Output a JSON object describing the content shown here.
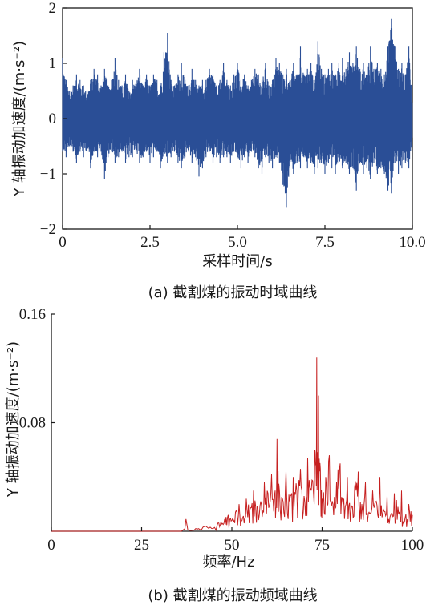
{
  "chart_data": [
    {
      "type": "line",
      "caption": "(a) 截割煤的振动时域曲线",
      "xlabel": "采样时间/s",
      "ylabel": "Y 轴振动加速度/(m·s⁻²)",
      "xlim": [
        0,
        10.0
      ],
      "ylim": [
        -2,
        2
      ],
      "x_ticks": [
        "0",
        "2.5",
        "5.0",
        "7.5",
        "10.0"
      ],
      "x_tick_values": [
        0,
        2.5,
        5.0,
        7.5,
        10.0
      ],
      "y_ticks": [
        "2",
        "1",
        "0",
        "−1",
        "−2"
      ],
      "y_tick_values": [
        2,
        1,
        0,
        -1,
        -2
      ],
      "color": "#2a4e96",
      "series": [
        {
          "x": [
            0.0,
            0.1,
            0.2,
            0.3,
            0.4,
            0.5,
            0.6,
            0.7,
            0.8,
            0.9,
            1.0,
            1.1,
            1.2,
            1.3,
            1.4,
            1.5,
            1.6,
            1.7,
            1.8,
            1.9,
            2.0,
            2.1,
            2.2,
            2.3,
            2.4,
            2.5,
            2.6,
            2.7,
            2.8,
            2.9,
            3.0,
            3.1,
            3.2,
            3.3,
            3.4,
            3.5,
            3.6,
            3.7,
            3.8,
            3.9,
            4.0,
            4.1,
            4.2,
            4.3,
            4.4,
            4.5,
            4.6,
            4.7,
            4.8,
            4.9,
            5.0,
            5.1,
            5.2,
            5.3,
            5.4,
            5.5,
            5.6,
            5.7,
            5.8,
            5.9,
            6.0,
            6.1,
            6.2,
            6.3,
            6.4,
            6.5,
            6.6,
            6.7,
            6.8,
            6.9,
            7.0,
            7.1,
            7.2,
            7.3,
            7.4,
            7.5,
            7.6,
            7.7,
            7.8,
            7.9,
            8.0,
            8.1,
            8.2,
            8.3,
            8.4,
            8.5,
            8.6,
            8.7,
            8.8,
            8.9,
            9.0,
            9.1,
            9.2,
            9.3,
            9.4,
            9.5,
            9.6,
            9.7,
            9.8,
            9.9,
            10.0
          ],
          "max": [
            1.1,
            0.7,
            0.5,
            0.6,
            0.8,
            0.7,
            0.6,
            0.5,
            0.7,
            0.9,
            0.8,
            0.6,
            0.9,
            0.6,
            0.7,
            1.1,
            0.7,
            0.6,
            0.8,
            0.5,
            0.7,
            0.7,
            0.9,
            0.6,
            0.8,
            0.6,
            0.8,
            0.7,
            0.6,
            1.2,
            1.55,
            0.7,
            0.6,
            0.8,
            1.0,
            0.7,
            0.6,
            0.9,
            0.7,
            0.6,
            0.7,
            0.7,
            0.9,
            0.8,
            0.6,
            0.7,
            1.0,
            0.7,
            0.6,
            0.8,
            1.0,
            0.7,
            0.8,
            0.6,
            0.7,
            0.9,
            0.8,
            0.7,
            1.0,
            0.6,
            0.7,
            1.1,
            1.0,
            0.8,
            0.9,
            0.7,
            1.0,
            0.8,
            1.3,
            0.8,
            0.9,
            1.0,
            0.7,
            1.4,
            0.9,
            0.8,
            0.9,
            1.0,
            0.8,
            1.0,
            1.1,
            0.9,
            1.2,
            1.0,
            1.3,
            0.9,
            1.0,
            0.8,
            1.3,
            0.9,
            1.0,
            0.9,
            0.8,
            1.3,
            1.8,
            1.3,
            0.9,
            1.0,
            0.8,
            1.3,
            0.3
          ],
          "min": [
            -0.6,
            -0.7,
            -0.5,
            -0.6,
            -0.8,
            -0.6,
            -0.7,
            -0.6,
            -0.9,
            -0.6,
            -0.7,
            -0.6,
            -1.1,
            -0.7,
            -0.6,
            -0.8,
            -0.7,
            -0.6,
            -0.8,
            -0.7,
            -0.7,
            -0.6,
            -0.8,
            -0.7,
            -0.6,
            -0.8,
            -0.7,
            -0.6,
            -0.9,
            -0.7,
            -0.8,
            -0.7,
            -0.6,
            -0.8,
            -0.9,
            -0.7,
            -0.6,
            -0.8,
            -0.7,
            -1.05,
            -0.9,
            -0.7,
            -0.6,
            -0.8,
            -0.7,
            -0.8,
            -0.7,
            -0.7,
            -0.8,
            -0.6,
            -0.7,
            -0.9,
            -0.7,
            -0.8,
            -0.6,
            -0.7,
            -0.9,
            -1.0,
            -0.7,
            -0.8,
            -0.9,
            -0.7,
            -0.8,
            -1.2,
            -1.6,
            -0.9,
            -1.0,
            -0.8,
            -0.9,
            -0.7,
            -0.9,
            -0.8,
            -1.0,
            -0.9,
            -0.8,
            -1.0,
            -0.8,
            -0.9,
            -1.0,
            -0.8,
            -0.9,
            -0.8,
            -1.0,
            -0.9,
            -1.3,
            -0.8,
            -1.0,
            -0.9,
            -1.1,
            -0.8,
            -1.0,
            -0.9,
            -1.0,
            -1.3,
            -1.35,
            -0.8,
            -1.0,
            -0.9,
            -0.8,
            -0.9,
            -0.4
          ]
        }
      ]
    },
    {
      "type": "line",
      "caption": "(b) 截割煤的振动频域曲线",
      "xlabel": "频率/Hz",
      "ylabel": "Y 轴振动加速度/(m·s⁻²)",
      "xlim": [
        0,
        100
      ],
      "ylim": [
        0,
        0.16
      ],
      "x_ticks": [
        "0",
        "25",
        "50",
        "75",
        "100"
      ],
      "x_tick_values": [
        0,
        25,
        50,
        75,
        100
      ],
      "y_ticks": [
        "0.16",
        "0.08"
      ],
      "y_tick_values": [
        0.16,
        0.08
      ],
      "color": "#c62020",
      "series": [
        {
          "x": [
            0,
            36,
            37,
            37.3,
            37.8,
            40,
            42,
            44,
            46,
            47,
            48,
            49,
            50,
            51,
            52,
            53,
            54,
            55,
            56,
            57,
            58,
            59,
            60,
            61,
            62,
            62.5,
            63,
            64,
            65,
            66,
            67,
            68,
            69,
            70,
            71,
            72,
            73,
            73.5,
            74,
            74.5,
            75,
            76,
            77,
            78,
            79,
            80,
            81,
            82,
            83,
            84,
            85,
            86,
            87,
            88,
            89,
            90,
            91,
            92,
            93,
            94,
            95,
            96,
            97,
            98,
            99,
            100
          ],
          "y": [
            0,
            0,
            0.002,
            0.009,
            0.001,
            0.002,
            0.003,
            0.003,
            0.005,
            0.007,
            0.009,
            0.012,
            0.008,
            0.014,
            0.02,
            0.01,
            0.024,
            0.016,
            0.03,
            0.018,
            0.022,
            0.036,
            0.028,
            0.042,
            0.03,
            0.068,
            0.035,
            0.024,
            0.044,
            0.022,
            0.04,
            0.03,
            0.046,
            0.026,
            0.054,
            0.03,
            0.06,
            0.128,
            0.1,
            0.046,
            0.024,
            0.04,
            0.056,
            0.02,
            0.036,
            0.05,
            0.024,
            0.04,
            0.016,
            0.032,
            0.044,
            0.02,
            0.036,
            0.014,
            0.03,
            0.022,
            0.04,
            0.016,
            0.026,
            0.012,
            0.028,
            0.018,
            0.03,
            0.01,
            0.02,
            0.012
          ]
        }
      ]
    }
  ]
}
